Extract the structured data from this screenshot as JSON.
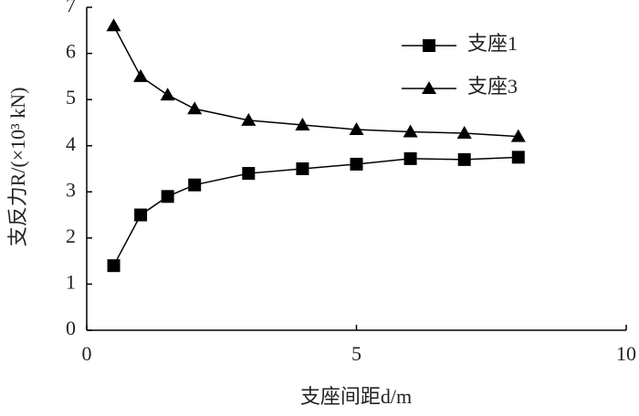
{
  "chart_data": {
    "type": "line",
    "x_label": "支座间距d/m",
    "y_label": "支反力R/(×10³ kN)",
    "x": [
      0.5,
      1,
      1.5,
      2,
      3,
      4,
      5,
      6,
      7,
      8
    ],
    "series": [
      {
        "name": "支座1",
        "color": "#000000",
        "marker": "square",
        "values": [
          1.4,
          2.5,
          2.9,
          3.15,
          3.4,
          3.5,
          3.6,
          3.72,
          3.7,
          3.75
        ]
      },
      {
        "name": "支座3",
        "color": "#000000",
        "marker": "triangle",
        "values": [
          6.6,
          5.5,
          5.1,
          4.8,
          4.55,
          4.45,
          4.35,
          4.3,
          4.27,
          4.2
        ]
      }
    ],
    "xlim": [
      0,
      10
    ],
    "xticks": [
      0,
      5,
      10
    ],
    "ylim": [
      0,
      7
    ],
    "yticks": [
      0,
      1,
      2,
      3,
      4,
      5,
      6,
      7
    ],
    "grid": false,
    "legend": "upper right"
  }
}
